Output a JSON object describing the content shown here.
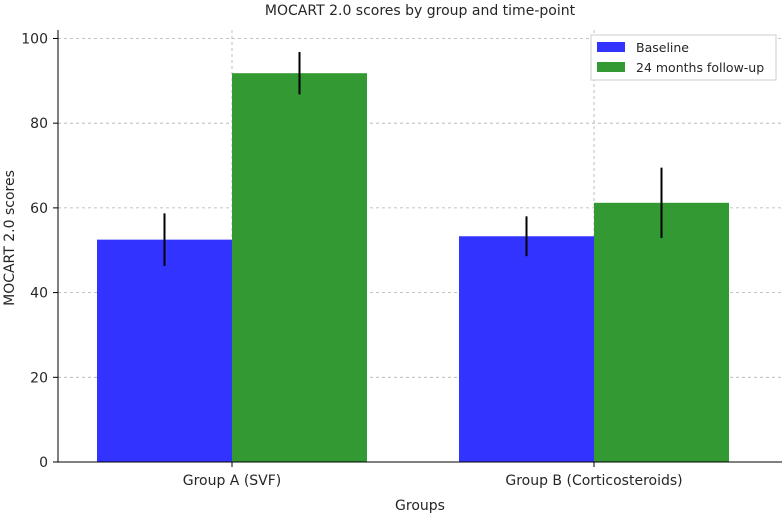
{
  "chart_data": {
    "type": "bar",
    "title": "MOCART 2.0 scores by group and time-point",
    "xlabel": "Groups",
    "ylabel": "MOCART 2.0 scores",
    "categories": [
      "Group A (SVF)",
      "Group B (Corticosteroids)"
    ],
    "series": [
      {
        "name": "Baseline",
        "color": "#3333ff",
        "values": [
          52.5,
          53.3
        ],
        "errors": [
          6.2,
          4.7
        ]
      },
      {
        "name": "24 months follow-up",
        "color": "#339933",
        "values": [
          91.8,
          61.2
        ],
        "errors": [
          5.0,
          8.3
        ]
      }
    ],
    "ylim": [
      0,
      102
    ],
    "yticks": [
      0,
      20,
      40,
      60,
      80,
      100
    ],
    "grid": true,
    "legend_position": "top-right"
  }
}
